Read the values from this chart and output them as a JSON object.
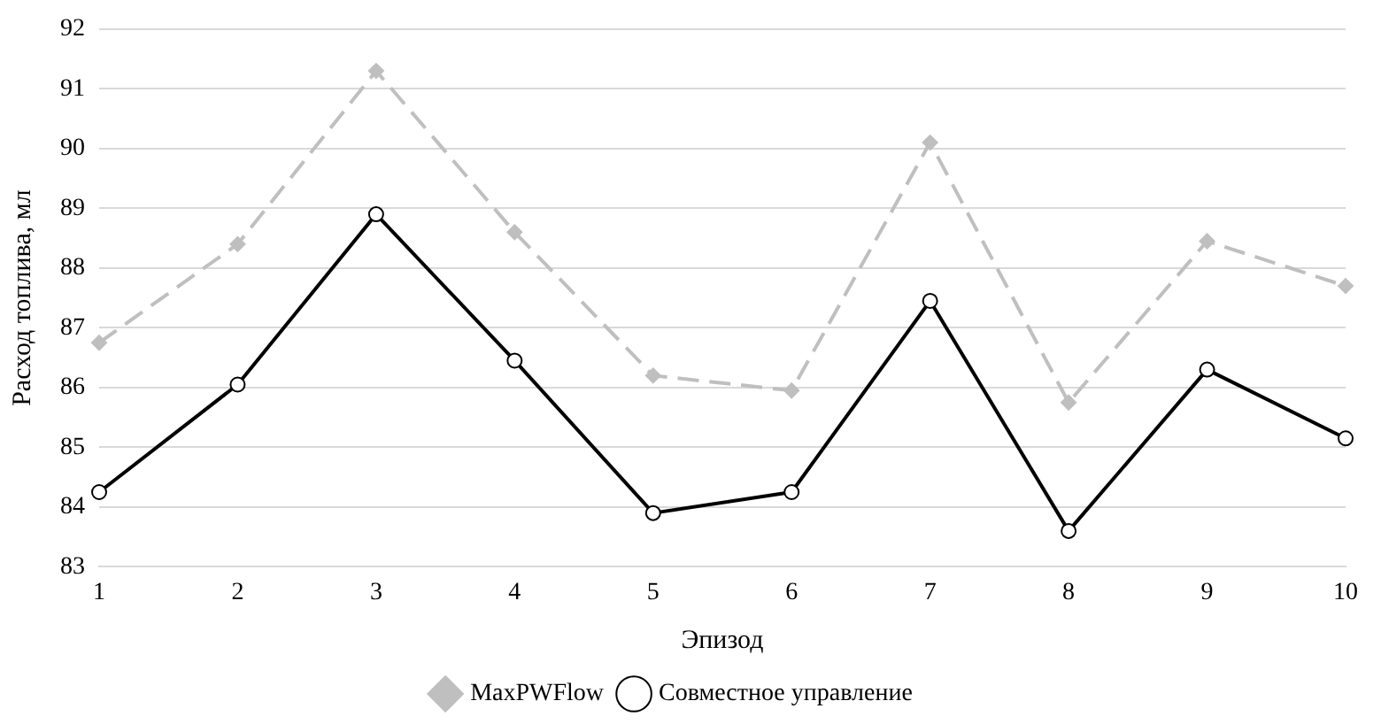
{
  "chart_data": {
    "type": "line",
    "xlabel": "Эпизод",
    "ylabel": "Расход топлива, мл",
    "categories": [
      "1",
      "2",
      "3",
      "4",
      "5",
      "6",
      "7",
      "8",
      "9",
      "10"
    ],
    "series": [
      {
        "name": "MaxPWFlow",
        "color": "#bfbfbf",
        "marker": "diamond",
        "line_style": "dashed",
        "values": [
          86.75,
          88.4,
          91.3,
          88.6,
          86.2,
          85.95,
          90.1,
          85.75,
          88.45,
          87.7
        ]
      },
      {
        "name": "Совместное управление",
        "color": "#000000",
        "marker": "circle",
        "line_style": "solid",
        "values": [
          84.25,
          86.05,
          88.9,
          86.45,
          83.9,
          84.25,
          87.45,
          83.6,
          86.3,
          85.15
        ]
      }
    ],
    "ylim": [
      83,
      92
    ],
    "yticks": [
      83,
      84,
      85,
      86,
      87,
      88,
      89,
      90,
      91,
      92
    ],
    "grid": "y",
    "legend": "bottom"
  }
}
